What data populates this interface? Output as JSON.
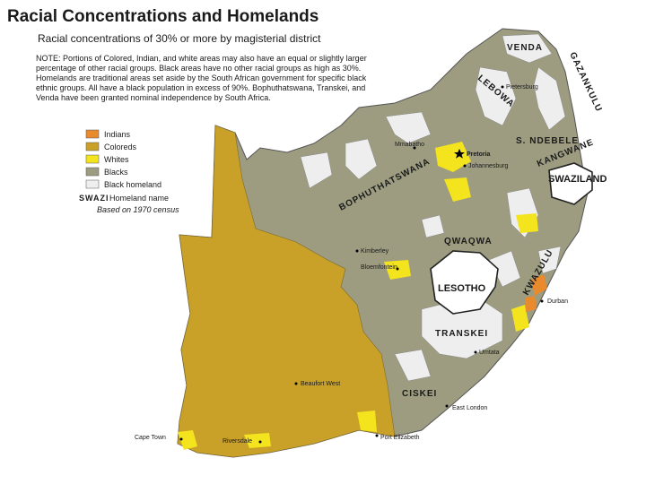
{
  "header": {
    "title": "Racial Concentrations and Homelands",
    "subtitle": "Racial concentrations of 30% or more by magisterial district"
  },
  "note": {
    "lines": [
      "NOTE: Portions of Colored, Indian, and white areas may also have an equal or slightly larger",
      "percentage of other racial groups. Black areas have no other racial groups as high as 30%.",
      "Homelands are traditional areas set aside by the South African government for specific black",
      "ethnic groups. All have a black population in excess of 90%. Bophuthatswana, Transkei, and",
      "Venda have been granted nominal independence by South Africa."
    ]
  },
  "legend": {
    "items": [
      {
        "label": "Indians",
        "color": "#e98a2c"
      },
      {
        "label": "Coloreds",
        "color": "#c9a128"
      },
      {
        "label": "Whites",
        "color": "#f4e41e"
      },
      {
        "label": "Blacks",
        "color": "#9d9c80"
      },
      {
        "label": "Black homeland",
        "color": "#eeeeee"
      }
    ],
    "homeland_key": {
      "abbr": "SWAZI",
      "label": "Homeland name"
    },
    "census": "Based on 1970 census"
  },
  "map": {
    "homelands": [
      "VENDA",
      "GAZANKULU",
      "LEBOWA",
      "S. NDEBELE",
      "KANGWANE",
      "BOPHUTHATSWANA",
      "QWAQWA",
      "KWAZULU",
      "TRANSKEI",
      "CISKEI"
    ],
    "countries": [
      "SWAZILAND",
      "LESOTHO"
    ],
    "cities": [
      "Pietersburg",
      "Pretoria",
      "Johannesburg",
      "Mmabatho",
      "Kimberley",
      "Bloemfontein",
      "Durban",
      "Umtata",
      "East London",
      "Beaufort West",
      "Cape Town",
      "Riversdale",
      "Port Elizabeth"
    ]
  }
}
